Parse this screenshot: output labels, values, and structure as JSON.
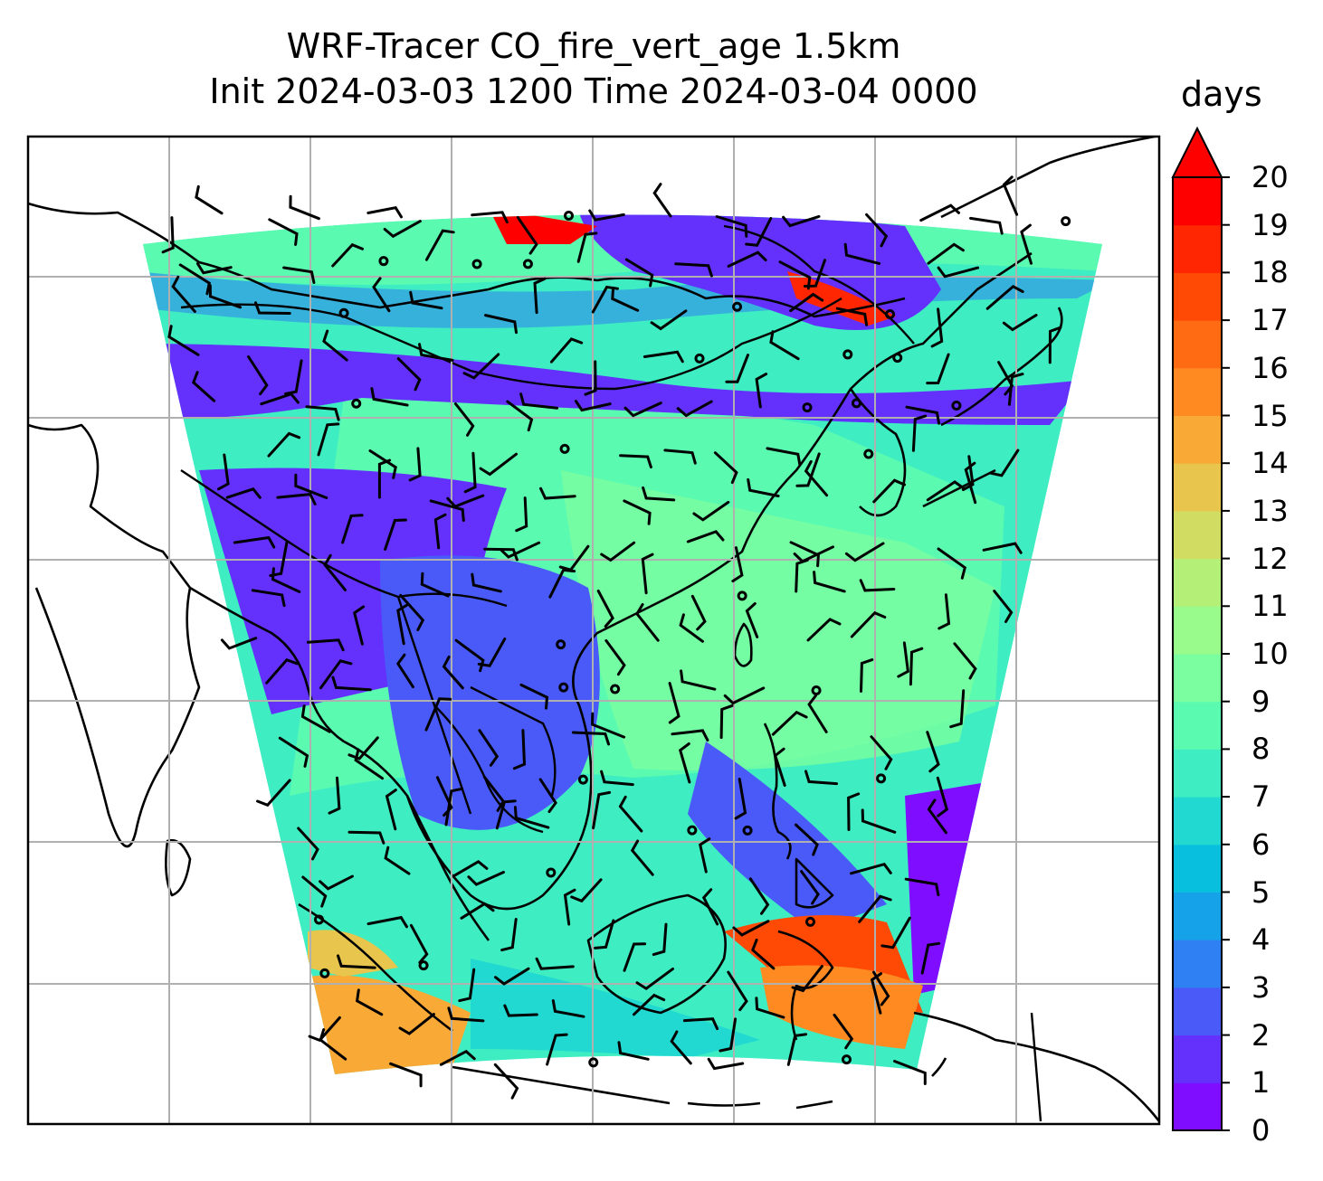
{
  "title": {
    "line1": "WRF-Tracer CO_fire_vert_age 1.5km",
    "line2": "Init 2024-03-03 1200 Time 2024-03-04 0000"
  },
  "map": {
    "field": "CO_fire_vert_age",
    "level": "1.5km",
    "gridlines": true,
    "overlays": [
      "coastlines",
      "country-borders",
      "wind-barbs"
    ]
  },
  "colorbar": {
    "label": "days",
    "ticks": [
      "0",
      "1",
      "2",
      "3",
      "4",
      "5",
      "6",
      "7",
      "8",
      "9",
      "10",
      "11",
      "12",
      "13",
      "14",
      "15",
      "16",
      "17",
      "18",
      "19",
      "20"
    ],
    "extend": "max",
    "colormap": "rainbow",
    "colors": [
      "#7f0dff",
      "#6430fc",
      "#4a5af8",
      "#2f80f2",
      "#16a2e9",
      "#08c0de",
      "#22d9d1",
      "#3eedc2",
      "#5bfab1",
      "#7afe9f",
      "#99fb8c",
      "#b4f077",
      "#d0dd62",
      "#e8c54c",
      "#f9a936",
      "#ff8a22",
      "#ff6b12",
      "#ff4a06",
      "#ff2601",
      "#ff0000"
    ],
    "overflow_color": "#ff0000"
  }
}
